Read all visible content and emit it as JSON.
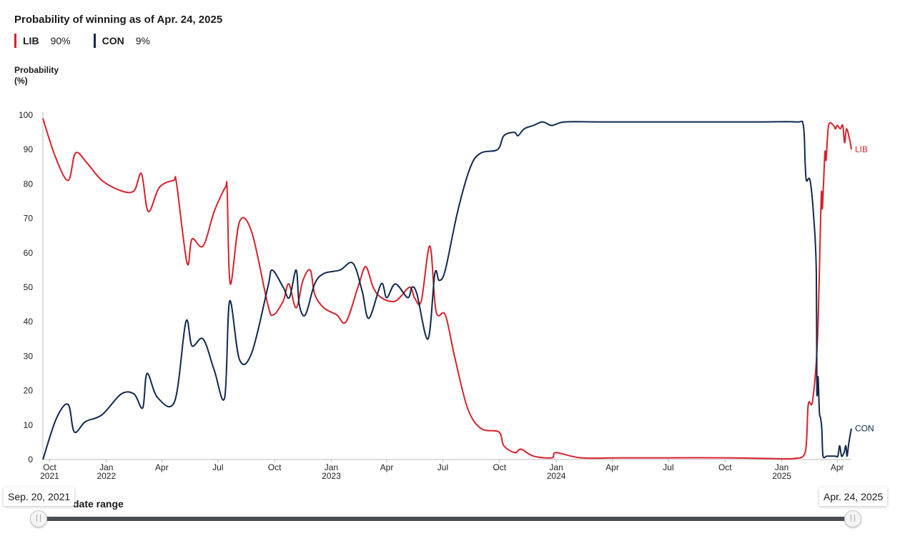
{
  "header": {
    "title": "Probability of winning as of Apr. 24, 2025"
  },
  "legend": [
    {
      "name": "LIB",
      "value": "90%",
      "color": "#d6222b"
    },
    {
      "name": "CON",
      "value": "9%",
      "color": "#0f2a4e"
    }
  ],
  "axis": {
    "ylabel_line1": "Probability",
    "ylabel_line2": "(%)"
  },
  "slider": {
    "label": "date range",
    "start_date": "Sep. 20, 2021",
    "end_date": "Apr. 24, 2025"
  },
  "chart_data": {
    "type": "line",
    "title": "Probability of winning as of Apr. 24, 2025",
    "ylabel": "Probability (%)",
    "ylim": [
      0,
      100
    ],
    "yticks": [
      0,
      10,
      20,
      30,
      40,
      50,
      60,
      70,
      80,
      90,
      100
    ],
    "xlim": [
      "2021-09-20",
      "2025-04-24"
    ],
    "xticks": [
      {
        "date": "2021-10-01",
        "label": [
          "Oct",
          "2021"
        ]
      },
      {
        "date": "2022-01-01",
        "label": [
          "Jan",
          "2022"
        ]
      },
      {
        "date": "2022-04-01",
        "label": [
          "Apr"
        ]
      },
      {
        "date": "2022-07-01",
        "label": [
          "Jul"
        ]
      },
      {
        "date": "2022-10-01",
        "label": [
          "Oct"
        ]
      },
      {
        "date": "2023-01-01",
        "label": [
          "Jan",
          "2023"
        ]
      },
      {
        "date": "2023-04-01",
        "label": [
          "Apr"
        ]
      },
      {
        "date": "2023-07-01",
        "label": [
          "Jul"
        ]
      },
      {
        "date": "2023-10-01",
        "label": [
          "Oct"
        ]
      },
      {
        "date": "2024-01-01",
        "label": [
          "Jan",
          "2024"
        ]
      },
      {
        "date": "2024-04-01",
        "label": [
          "Apr"
        ]
      },
      {
        "date": "2024-07-01",
        "label": [
          "Jul"
        ]
      },
      {
        "date": "2024-10-01",
        "label": [
          "Oct"
        ]
      },
      {
        "date": "2025-01-01",
        "label": [
          "Jan",
          "2025"
        ]
      },
      {
        "date": "2025-04-01",
        "label": [
          "Apr"
        ]
      }
    ],
    "grid": false,
    "series": [
      {
        "name": "LIB",
        "color": "#d6222b",
        "end_label": "LIB",
        "points": [
          [
            "2021-09-20",
            99
          ],
          [
            "2021-10-10",
            88
          ],
          [
            "2021-10-31",
            81
          ],
          [
            "2021-11-12",
            89
          ],
          [
            "2021-12-01",
            86
          ],
          [
            "2021-12-25",
            81
          ],
          [
            "2022-01-25",
            78
          ],
          [
            "2022-02-15",
            78
          ],
          [
            "2022-02-27",
            83
          ],
          [
            "2022-03-10",
            72
          ],
          [
            "2022-03-28",
            79
          ],
          [
            "2022-04-20",
            81
          ],
          [
            "2022-04-25",
            80
          ],
          [
            "2022-05-12",
            57
          ],
          [
            "2022-05-20",
            64
          ],
          [
            "2022-06-07",
            62
          ],
          [
            "2022-06-25",
            72
          ],
          [
            "2022-07-13",
            79
          ],
          [
            "2022-07-16",
            78
          ],
          [
            "2022-07-21",
            51
          ],
          [
            "2022-08-05",
            69
          ],
          [
            "2022-08-25",
            66
          ],
          [
            "2022-09-20",
            45
          ],
          [
            "2022-09-29",
            42
          ],
          [
            "2022-10-15",
            46
          ],
          [
            "2022-10-24",
            51
          ],
          [
            "2022-11-05",
            44
          ],
          [
            "2022-11-16",
            52
          ],
          [
            "2022-11-28",
            55
          ],
          [
            "2022-12-05",
            48
          ],
          [
            "2022-12-20",
            44
          ],
          [
            "2023-01-10",
            42
          ],
          [
            "2023-01-25",
            40
          ],
          [
            "2023-02-15",
            51
          ],
          [
            "2023-02-26",
            56
          ],
          [
            "2023-03-10",
            50
          ],
          [
            "2023-03-23",
            47
          ],
          [
            "2023-04-15",
            46
          ],
          [
            "2023-05-08",
            50
          ],
          [
            "2023-05-16",
            47
          ],
          [
            "2023-05-27",
            46
          ],
          [
            "2023-06-10",
            62
          ],
          [
            "2023-06-20",
            43
          ],
          [
            "2023-07-05",
            42
          ],
          [
            "2023-07-20",
            30
          ],
          [
            "2023-08-10",
            15
          ],
          [
            "2023-09-01",
            9
          ],
          [
            "2023-09-30",
            8
          ],
          [
            "2023-10-08",
            4
          ],
          [
            "2023-10-26",
            2
          ],
          [
            "2023-11-05",
            3
          ],
          [
            "2023-11-25",
            1
          ],
          [
            "2023-12-25",
            0.5
          ],
          [
            "2024-01-01",
            2
          ],
          [
            "2024-02-10",
            0.5
          ],
          [
            "2024-04-15",
            0.5
          ],
          [
            "2024-07-01",
            0.5
          ],
          [
            "2024-10-01",
            0.5
          ],
          [
            "2024-12-15",
            0.3
          ],
          [
            "2025-01-20",
            0.3
          ],
          [
            "2025-02-08",
            2
          ],
          [
            "2025-02-13",
            16
          ],
          [
            "2025-02-20",
            17
          ],
          [
            "2025-02-28",
            35
          ],
          [
            "2025-03-06",
            76
          ],
          [
            "2025-03-08",
            73
          ],
          [
            "2025-03-12",
            89
          ],
          [
            "2025-03-14",
            87
          ],
          [
            "2025-03-18",
            97
          ],
          [
            "2025-03-26",
            97
          ],
          [
            "2025-03-29",
            96
          ],
          [
            "2025-04-01",
            97
          ],
          [
            "2025-04-06",
            96
          ],
          [
            "2025-04-10",
            97
          ],
          [
            "2025-04-13",
            92
          ],
          [
            "2025-04-16",
            96
          ],
          [
            "2025-04-21",
            93
          ],
          [
            "2025-04-24",
            90
          ]
        ]
      },
      {
        "name": "CON",
        "color": "#0f2a4e",
        "end_label": "CON",
        "points": [
          [
            "2021-09-20",
            0
          ],
          [
            "2021-10-12",
            12
          ],
          [
            "2021-10-31",
            16
          ],
          [
            "2021-11-10",
            8
          ],
          [
            "2021-11-28",
            11
          ],
          [
            "2021-12-25",
            13
          ],
          [
            "2022-01-25",
            19
          ],
          [
            "2022-02-15",
            19
          ],
          [
            "2022-03-01",
            15
          ],
          [
            "2022-03-08",
            25
          ],
          [
            "2022-03-25",
            18
          ],
          [
            "2022-04-22",
            17
          ],
          [
            "2022-05-10",
            40
          ],
          [
            "2022-05-20",
            33
          ],
          [
            "2022-06-07",
            35
          ],
          [
            "2022-06-25",
            26
          ],
          [
            "2022-07-12",
            18
          ],
          [
            "2022-07-20",
            46
          ],
          [
            "2022-08-05",
            29
          ],
          [
            "2022-08-25",
            31
          ],
          [
            "2022-09-20",
            50
          ],
          [
            "2022-09-27",
            55
          ],
          [
            "2022-10-15",
            50
          ],
          [
            "2022-10-25",
            47
          ],
          [
            "2022-11-05",
            55
          ],
          [
            "2022-11-10",
            45
          ],
          [
            "2022-11-20",
            42
          ],
          [
            "2022-12-05",
            51
          ],
          [
            "2022-12-20",
            54
          ],
          [
            "2023-01-15",
            55
          ],
          [
            "2023-02-05",
            57
          ],
          [
            "2023-02-20",
            49
          ],
          [
            "2023-03-03",
            41
          ],
          [
            "2023-03-23",
            51
          ],
          [
            "2023-04-01",
            47
          ],
          [
            "2023-04-15",
            51
          ],
          [
            "2023-05-05",
            47
          ],
          [
            "2023-05-12",
            50
          ],
          [
            "2023-05-20",
            48
          ],
          [
            "2023-06-07",
            35
          ],
          [
            "2023-06-18",
            54
          ],
          [
            "2023-06-25",
            52
          ],
          [
            "2023-07-05",
            55
          ],
          [
            "2023-07-25",
            72
          ],
          [
            "2023-08-15",
            85
          ],
          [
            "2023-09-01",
            89
          ],
          [
            "2023-09-28",
            90
          ],
          [
            "2023-10-08",
            94
          ],
          [
            "2023-10-25",
            95
          ],
          [
            "2023-10-31",
            94
          ],
          [
            "2023-11-10",
            96
          ],
          [
            "2023-11-25",
            97
          ],
          [
            "2023-12-10",
            98
          ],
          [
            "2023-12-25",
            97
          ],
          [
            "2024-01-15",
            98
          ],
          [
            "2024-03-15",
            98
          ],
          [
            "2024-07-01",
            98
          ],
          [
            "2024-10-01",
            98
          ],
          [
            "2024-12-01",
            98
          ],
          [
            "2025-01-25",
            98
          ],
          [
            "2025-02-05",
            97
          ],
          [
            "2025-02-08",
            86
          ],
          [
            "2025-02-10",
            81
          ],
          [
            "2025-02-16",
            81
          ],
          [
            "2025-02-22",
            70
          ],
          [
            "2025-02-26",
            55
          ],
          [
            "2025-02-27",
            20
          ],
          [
            "2025-03-01",
            24
          ],
          [
            "2025-03-03",
            14
          ],
          [
            "2025-03-05",
            12
          ],
          [
            "2025-03-07",
            9
          ],
          [
            "2025-03-09",
            1
          ],
          [
            "2025-03-15",
            1
          ],
          [
            "2025-03-20",
            1
          ],
          [
            "2025-03-25",
            1
          ],
          [
            "2025-03-29",
            1
          ],
          [
            "2025-04-02",
            1
          ],
          [
            "2025-04-05",
            4
          ],
          [
            "2025-04-08",
            1
          ],
          [
            "2025-04-12",
            2
          ],
          [
            "2025-04-15",
            4
          ],
          [
            "2025-04-17",
            1
          ],
          [
            "2025-04-20",
            5
          ],
          [
            "2025-04-24",
            9
          ]
        ]
      }
    ]
  }
}
